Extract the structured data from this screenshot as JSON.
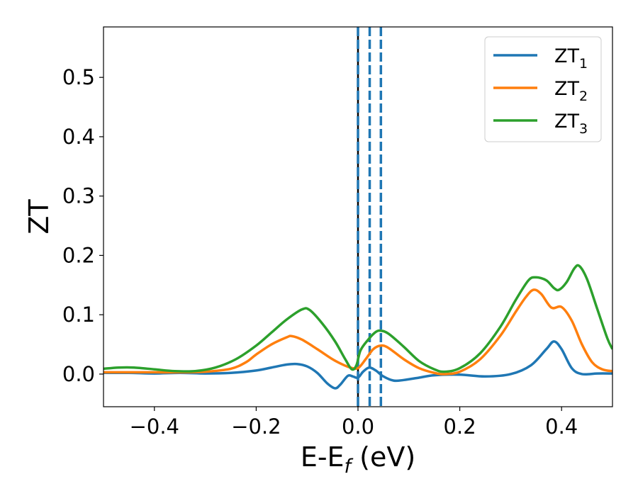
{
  "chart_data": {
    "type": "line",
    "xlabel": "E-E",
    "xlabel_sub": "f",
    "xlabel_unit": " (eV)",
    "ylabel": "ZT",
    "xlim": [
      -0.5,
      0.5
    ],
    "ylim": [
      -0.055,
      0.585
    ],
    "grid": false,
    "legend_position": "top-right",
    "x_ticks": [
      -0.4,
      -0.2,
      0.0,
      0.2,
      0.4
    ],
    "x_tick_labels": [
      "−0.4",
      "−0.2",
      "0.0",
      "0.2",
      "0.4"
    ],
    "y_ticks": [
      0.0,
      0.1,
      0.2,
      0.3,
      0.4,
      0.5
    ],
    "y_tick_labels": [
      "0.0",
      "0.1",
      "0.2",
      "0.3",
      "0.4",
      "0.5"
    ],
    "vertical_lines": [
      {
        "x": 0.0,
        "style": "solid",
        "color": "#000000"
      },
      {
        "x": 0.0,
        "style": "dashed",
        "color": "#1f77b4"
      },
      {
        "x": 0.023,
        "style": "dashed",
        "color": "#1f77b4"
      },
      {
        "x": 0.045,
        "style": "dashed",
        "color": "#1f77b4"
      }
    ],
    "series": [
      {
        "name": "ZT",
        "name_sub": "1",
        "color": "#1f77b4",
        "points": [
          [
            -0.5,
            0.002
          ],
          [
            -0.45,
            0.002
          ],
          [
            -0.4,
            0.001
          ],
          [
            -0.35,
            0.002
          ],
          [
            -0.3,
            0.001
          ],
          [
            -0.25,
            0.002
          ],
          [
            -0.2,
            0.006
          ],
          [
            -0.17,
            0.011
          ],
          [
            -0.14,
            0.016
          ],
          [
            -0.12,
            0.017
          ],
          [
            -0.1,
            0.013
          ],
          [
            -0.08,
            0.002
          ],
          [
            -0.06,
            -0.016
          ],
          [
            -0.045,
            -0.024
          ],
          [
            -0.035,
            -0.018
          ],
          [
            -0.02,
            -0.003
          ],
          [
            -0.01,
            -0.004
          ],
          [
            0.0,
            -0.006
          ],
          [
            0.01,
            0.004
          ],
          [
            0.022,
            0.011
          ],
          [
            0.035,
            0.006
          ],
          [
            0.05,
            -0.004
          ],
          [
            0.07,
            -0.011
          ],
          [
            0.09,
            -0.01
          ],
          [
            0.12,
            -0.006
          ],
          [
            0.15,
            -0.002
          ],
          [
            0.2,
            -0.001
          ],
          [
            0.25,
            -0.004
          ],
          [
            0.3,
            0.0
          ],
          [
            0.34,
            0.015
          ],
          [
            0.37,
            0.042
          ],
          [
            0.385,
            0.055
          ],
          [
            0.4,
            0.042
          ],
          [
            0.42,
            0.01
          ],
          [
            0.44,
            0.0
          ],
          [
            0.47,
            0.001
          ],
          [
            0.5,
            0.001
          ]
        ]
      },
      {
        "name": "ZT",
        "name_sub": "2",
        "color": "#ff7f0e",
        "points": [
          [
            -0.5,
            0.003
          ],
          [
            -0.45,
            0.003
          ],
          [
            -0.4,
            0.003
          ],
          [
            -0.35,
            0.003
          ],
          [
            -0.3,
            0.004
          ],
          [
            -0.25,
            0.009
          ],
          [
            -0.22,
            0.02
          ],
          [
            -0.2,
            0.033
          ],
          [
            -0.17,
            0.05
          ],
          [
            -0.14,
            0.062
          ],
          [
            -0.13,
            0.064
          ],
          [
            -0.11,
            0.058
          ],
          [
            -0.08,
            0.042
          ],
          [
            -0.05,
            0.025
          ],
          [
            -0.03,
            0.016
          ],
          [
            -0.015,
            0.011
          ],
          [
            0.0,
            0.01
          ],
          [
            0.015,
            0.025
          ],
          [
            0.03,
            0.042
          ],
          [
            0.045,
            0.048
          ],
          [
            0.06,
            0.044
          ],
          [
            0.09,
            0.025
          ],
          [
            0.12,
            0.01
          ],
          [
            0.15,
            0.002
          ],
          [
            0.17,
            0.0
          ],
          [
            0.2,
            0.004
          ],
          [
            0.24,
            0.025
          ],
          [
            0.28,
            0.065
          ],
          [
            0.31,
            0.105
          ],
          [
            0.33,
            0.13
          ],
          [
            0.345,
            0.142
          ],
          [
            0.36,
            0.135
          ],
          [
            0.38,
            0.112
          ],
          [
            0.4,
            0.113
          ],
          [
            0.42,
            0.09
          ],
          [
            0.44,
            0.05
          ],
          [
            0.46,
            0.02
          ],
          [
            0.48,
            0.008
          ],
          [
            0.5,
            0.005
          ]
        ]
      },
      {
        "name": "ZT",
        "name_sub": "3",
        "color": "#2ca02c",
        "points": [
          [
            -0.5,
            0.009
          ],
          [
            -0.47,
            0.011
          ],
          [
            -0.44,
            0.011
          ],
          [
            -0.4,
            0.008
          ],
          [
            -0.36,
            0.005
          ],
          [
            -0.32,
            0.005
          ],
          [
            -0.28,
            0.011
          ],
          [
            -0.24,
            0.025
          ],
          [
            -0.2,
            0.048
          ],
          [
            -0.17,
            0.07
          ],
          [
            -0.14,
            0.092
          ],
          [
            -0.11,
            0.109
          ],
          [
            -0.095,
            0.108
          ],
          [
            -0.07,
            0.085
          ],
          [
            -0.045,
            0.055
          ],
          [
            -0.025,
            0.025
          ],
          [
            -0.012,
            0.008
          ],
          [
            -0.003,
            0.015
          ],
          [
            0.005,
            0.04
          ],
          [
            0.02,
            0.058
          ],
          [
            0.035,
            0.071
          ],
          [
            0.045,
            0.073
          ],
          [
            0.06,
            0.068
          ],
          [
            0.09,
            0.046
          ],
          [
            0.12,
            0.022
          ],
          [
            0.15,
            0.008
          ],
          [
            0.17,
            0.004
          ],
          [
            0.2,
            0.01
          ],
          [
            0.24,
            0.035
          ],
          [
            0.28,
            0.08
          ],
          [
            0.31,
            0.125
          ],
          [
            0.335,
            0.158
          ],
          [
            0.35,
            0.163
          ],
          [
            0.37,
            0.158
          ],
          [
            0.385,
            0.145
          ],
          [
            0.395,
            0.142
          ],
          [
            0.41,
            0.155
          ],
          [
            0.425,
            0.178
          ],
          [
            0.435,
            0.182
          ],
          [
            0.45,
            0.16
          ],
          [
            0.47,
            0.11
          ],
          [
            0.49,
            0.06
          ],
          [
            0.5,
            0.042
          ]
        ]
      }
    ]
  }
}
